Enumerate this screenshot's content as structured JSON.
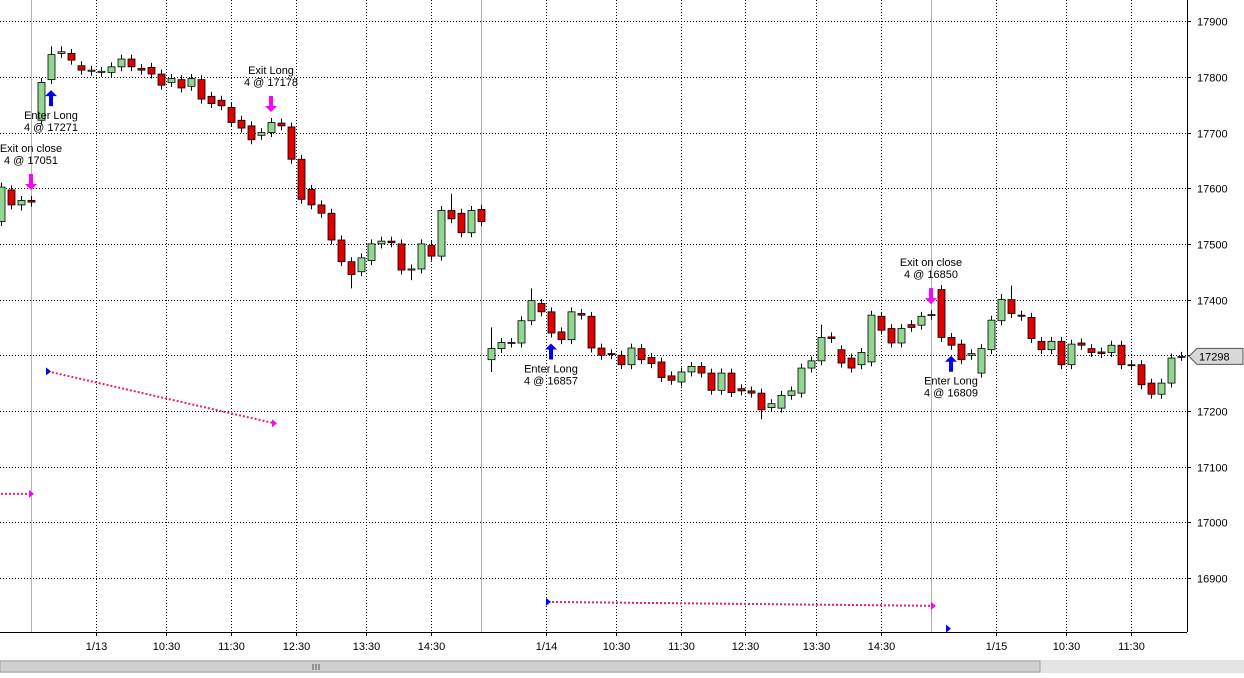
{
  "chart_data": {
    "type": "candlestick",
    "xlim": [
      -0.1,
      118.6
    ],
    "ylim": [
      16803,
      17938
    ],
    "yticks": [
      16900,
      17000,
      17100,
      17200,
      17300,
      17400,
      17500,
      17600,
      17700,
      17800,
      17900
    ],
    "xticks": [
      {
        "value": 9.5,
        "label": "1/13"
      },
      {
        "value": 16.5,
        "label": "10:30"
      },
      {
        "value": 23,
        "label": "11:30"
      },
      {
        "value": 29.5,
        "label": "12:30"
      },
      {
        "value": 36.5,
        "label": "13:30"
      },
      {
        "value": 43,
        "label": "14:30"
      },
      {
        "value": 54.5,
        "label": "1/14"
      },
      {
        "value": 61.5,
        "label": "10:30"
      },
      {
        "value": 68,
        "label": "11:30"
      },
      {
        "value": 74.4,
        "label": "12:30"
      },
      {
        "value": 81.5,
        "label": "13:30"
      },
      {
        "value": 88,
        "label": "14:30"
      },
      {
        "value": 99.5,
        "label": "1/15"
      },
      {
        "value": 106.5,
        "label": "10:30"
      },
      {
        "value": 113,
        "label": "11:30"
      }
    ],
    "vlines": [
      3,
      48,
      93
    ],
    "grid": true,
    "up_color": "#90d890",
    "down_color": "#e00000",
    "open": [
      17540,
      17597,
      17570,
      17578,
      17722,
      17795,
      17842,
      17842,
      17820,
      17810,
      17808,
      17808,
      17818,
      17832,
      17815,
      17817,
      17805,
      17790,
      17795,
      17783,
      17795,
      17765,
      17758,
      17745,
      17722,
      17712,
      17695,
      17700,
      17717,
      17710,
      17652,
      17598,
      17570,
      17555,
      17507,
      17468,
      17450,
      17470,
      17500,
      17505,
      17500,
      17453,
      17455,
      17497,
      17478,
      17560,
      17555,
      17520,
      17562,
      17292,
      17312,
      17322,
      17322,
      17362,
      17393,
      17378,
      17342,
      17328,
      17375,
      17370,
      17313,
      17303,
      17300,
      17283,
      17312,
      17296,
      17288,
      17263,
      17252,
      17270,
      17280,
      17268,
      17237,
      17268,
      17240,
      17236,
      17232,
      17206,
      17205,
      17228,
      17232,
      17277,
      17290,
      17333,
      17310,
      17295,
      17283,
      17288,
      17370,
      17348,
      17322,
      17355,
      17354,
      17372,
      17418,
      17332,
      17320,
      17300,
      17268,
      17310,
      17362,
      17400,
      17372,
      17368,
      17325,
      17310,
      17325,
      17283,
      17322,
      17312,
      17306,
      17305,
      17318,
      17283,
      17283,
      17250,
      17230,
      17250,
      17298
    ],
    "high": [
      17610,
      17605,
      17586,
      17586,
      17798,
      17855,
      17855,
      17850,
      17828,
      17820,
      17818,
      17826,
      17840,
      17840,
      17823,
      17825,
      17813,
      17805,
      17803,
      17805,
      17803,
      17773,
      17766,
      17753,
      17730,
      17720,
      17708,
      17726,
      17725,
      17718,
      17660,
      17606,
      17578,
      17563,
      17515,
      17476,
      17483,
      17508,
      17513,
      17513,
      17508,
      17463,
      17508,
      17505,
      17568,
      17590,
      17563,
      17568,
      17570,
      17350,
      17331,
      17331,
      17370,
      17420,
      17401,
      17386,
      17350,
      17386,
      17383,
      17378,
      17321,
      17311,
      17308,
      17321,
      17320,
      17304,
      17296,
      17271,
      17278,
      17288,
      17288,
      17276,
      17276,
      17276,
      17248,
      17244,
      17240,
      17221,
      17236,
      17244,
      17285,
      17298,
      17355,
      17341,
      17318,
      17303,
      17313,
      17380,
      17378,
      17356,
      17356,
      17363,
      17378,
      17381,
      17426,
      17340,
      17328,
      17311,
      17320,
      17371,
      17410,
      17425,
      17380,
      17376,
      17333,
      17333,
      17333,
      17328,
      17330,
      17320,
      17314,
      17326,
      17326,
      17291,
      17291,
      17258,
      17258,
      17303,
      17306
    ],
    "low": [
      17532,
      17562,
      17560,
      17567,
      17714,
      17787,
      17834,
      17822,
      17804,
      17802,
      17800,
      17800,
      17810,
      17810,
      17804,
      17797,
      17777,
      17782,
      17772,
      17775,
      17752,
      17744,
      17740,
      17710,
      17700,
      17679,
      17687,
      17692,
      17704,
      17644,
      17572,
      17562,
      17547,
      17499,
      17460,
      17420,
      17442,
      17462,
      17492,
      17494,
      17445,
      17435,
      17447,
      17470,
      17470,
      17537,
      17512,
      17512,
      17532,
      17270,
      17304,
      17314,
      17314,
      17354,
      17370,
      17332,
      17320,
      17320,
      17364,
      17305,
      17292,
      17293,
      17275,
      17275,
      17284,
      17277,
      17252,
      17247,
      17244,
      17262,
      17260,
      17229,
      17229,
      17225,
      17228,
      17224,
      17185,
      17198,
      17197,
      17220,
      17224,
      17269,
      17282,
      17322,
      17278,
      17269,
      17275,
      17280,
      17337,
      17314,
      17314,
      17342,
      17346,
      17364,
      17324,
      17310,
      17284,
      17292,
      17260,
      17302,
      17354,
      17367,
      17362,
      17322,
      17302,
      17302,
      17275,
      17275,
      17310,
      17297,
      17295,
      17297,
      17275,
      17274,
      17239,
      17222,
      17222,
      17242,
      17290
    ],
    "close": [
      17602,
      17570,
      17578,
      17575,
      17790,
      17840,
      17845,
      17830,
      17812,
      17812,
      17810,
      17818,
      17832,
      17818,
      17812,
      17805,
      17785,
      17797,
      17780,
      17797,
      17760,
      17752,
      17748,
      17718,
      17708,
      17687,
      17700,
      17718,
      17712,
      17652,
      17580,
      17570,
      17555,
      17507,
      17468,
      17445,
      17475,
      17500,
      17505,
      17502,
      17453,
      17455,
      17500,
      17478,
      17560,
      17545,
      17520,
      17560,
      17540,
      17312,
      17323,
      17323,
      17362,
      17398,
      17378,
      17340,
      17328,
      17378,
      17372,
      17313,
      17300,
      17301,
      17283,
      17313,
      17292,
      17285,
      17260,
      17255,
      17270,
      17280,
      17268,
      17237,
      17268,
      17233,
      17236,
      17232,
      17202,
      17213,
      17228,
      17236,
      17277,
      17290,
      17332,
      17330,
      17286,
      17277,
      17305,
      17372,
      17345,
      17322,
      17348,
      17350,
      17370,
      17373,
      17332,
      17318,
      17292,
      17303,
      17312,
      17363,
      17400,
      17375,
      17370,
      17330,
      17310,
      17325,
      17283,
      17320,
      17318,
      17305,
      17303,
      17318,
      17283,
      17282,
      17247,
      17230,
      17250,
      17295,
      17298
    ],
    "annotations": [
      {
        "lines": [
          "Exit on close",
          "4 @ 17051"
        ],
        "at": 3,
        "arrow": "down",
        "color": "#ff00ff"
      },
      {
        "lines": [
          "Enter Long",
          "4 @ 17271"
        ],
        "at": 5,
        "arrow": "up",
        "color": "#0000ff"
      },
      {
        "lines": [
          "Exit Long",
          "4 @ 17178"
        ],
        "at": 27,
        "arrow": "down",
        "color": "#ff00ff"
      },
      {
        "lines": [
          "Enter Long",
          "4 @ 16857"
        ],
        "at": 55,
        "arrow": "up",
        "color": "#0000ff"
      },
      {
        "lines": [
          "Exit on close",
          "4 @ 16850"
        ],
        "at": 93,
        "arrow": "down",
        "color": "#ff00ff"
      },
      {
        "lines": [
          "Enter Long",
          "4 @ 16809"
        ],
        "at": 95,
        "arrow": "up",
        "color": "#0000ff"
      }
    ],
    "trades": [
      {
        "x": [
          -2,
          3
        ],
        "values": [
          17051,
          17051
        ]
      },
      {
        "x": [
          4.7,
          27.3
        ],
        "values": [
          17271,
          17178
        ]
      },
      {
        "x": [
          54.7,
          93.2
        ],
        "values": [
          16857,
          16850
        ]
      },
      {
        "x": [
          94.7
        ],
        "values": [
          16809
        ]
      }
    ],
    "trade_color": "#e8206a"
  }
}
